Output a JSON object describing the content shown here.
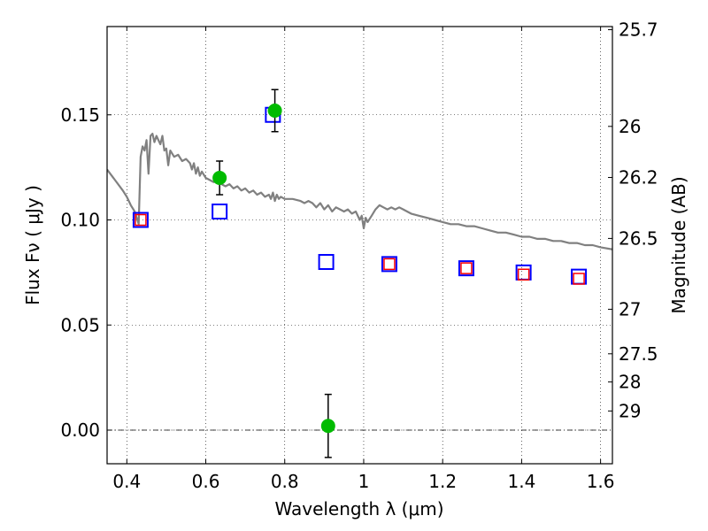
{
  "chart_data": {
    "type": "scatter",
    "xlabel": "Wavelength  λ (μm)",
    "ylabel": "Flux  Fν  ( μJy )",
    "y2label": "Magnitude (AB)",
    "xlim": [
      0.35,
      1.63
    ],
    "ylim": [
      -0.016,
      0.192
    ],
    "x_ticks": [
      0.4,
      0.6,
      0.8,
      1.0,
      1.2,
      1.4,
      1.6
    ],
    "x_tick_labels": [
      "0.4",
      "0.6",
      "0.8",
      "1",
      "1.2",
      "1.4",
      "1.6"
    ],
    "y_ticks": [
      0.0,
      0.05,
      0.1,
      0.15
    ],
    "y_tick_labels": [
      "0.00",
      "0.05",
      "0.10",
      "0.15"
    ],
    "y2_ticks": [
      {
        "label": "25.7",
        "flux": 0.1905
      },
      {
        "label": "26",
        "flux": 0.1445
      },
      {
        "label": "26.2",
        "flux": 0.1202
      },
      {
        "label": "26.5",
        "flux": 0.0912
      },
      {
        "label": "27",
        "flux": 0.0575
      },
      {
        "label": "27.5",
        "flux": 0.0363
      },
      {
        "label": "28",
        "flux": 0.0229
      },
      {
        "label": "29",
        "flux": 0.0091
      }
    ],
    "grid": true,
    "grid_style": "dotted",
    "zero_line": true,
    "colors": {
      "model_line": "#808080",
      "observed": "#00bb00",
      "model_box": "#0000ff",
      "small_box": "#ff0000",
      "errorbar": "#000000"
    },
    "series": [
      {
        "type": "errorbar",
        "marker": "circle",
        "x": [
          0.635,
          0.775,
          0.91
        ],
        "y": [
          0.12,
          0.152,
          0.002
        ],
        "yerr": [
          0.008,
          0.01,
          0.015
        ]
      },
      {
        "type": "scatter",
        "marker": "square-open",
        "x": [
          0.435,
          0.635,
          0.77,
          0.905,
          1.065,
          1.26,
          1.405,
          1.545
        ],
        "y": [
          0.1,
          0.104,
          0.15,
          0.08,
          0.079,
          0.077,
          0.075,
          0.073
        ]
      },
      {
        "type": "scatter",
        "marker": "square-open",
        "x": [
          0.435,
          1.065,
          1.26,
          1.405,
          1.545
        ],
        "y": [
          0.1,
          0.079,
          0.077,
          0.074,
          0.072
        ]
      },
      {
        "type": "line",
        "x": [
          0.35,
          0.37,
          0.39,
          0.4,
          0.41,
          0.42,
          0.425,
          0.43,
          0.435,
          0.44,
          0.445,
          0.45,
          0.455,
          0.46,
          0.465,
          0.47,
          0.475,
          0.48,
          0.485,
          0.49,
          0.495,
          0.5,
          0.505,
          0.51,
          0.52,
          0.53,
          0.54,
          0.55,
          0.56,
          0.565,
          0.57,
          0.575,
          0.58,
          0.585,
          0.59,
          0.6,
          0.61,
          0.62,
          0.63,
          0.64,
          0.65,
          0.66,
          0.67,
          0.68,
          0.69,
          0.7,
          0.71,
          0.72,
          0.73,
          0.74,
          0.75,
          0.76,
          0.765,
          0.77,
          0.775,
          0.78,
          0.785,
          0.79,
          0.8,
          0.82,
          0.84,
          0.85,
          0.86,
          0.87,
          0.88,
          0.89,
          0.9,
          0.91,
          0.92,
          0.93,
          0.94,
          0.95,
          0.96,
          0.97,
          0.98,
          0.99,
          0.995,
          1.0,
          1.005,
          1.01,
          1.02,
          1.03,
          1.04,
          1.05,
          1.06,
          1.07,
          1.08,
          1.09,
          1.1,
          1.12,
          1.14,
          1.16,
          1.18,
          1.2,
          1.22,
          1.24,
          1.26,
          1.28,
          1.3,
          1.32,
          1.34,
          1.36,
          1.38,
          1.4,
          1.42,
          1.44,
          1.46,
          1.48,
          1.5,
          1.52,
          1.54,
          1.56,
          1.58,
          1.6,
          1.63
        ],
        "y": [
          0.124,
          0.119,
          0.114,
          0.111,
          0.107,
          0.104,
          0.101,
          0.098,
          0.13,
          0.135,
          0.133,
          0.138,
          0.122,
          0.14,
          0.141,
          0.137,
          0.14,
          0.138,
          0.136,
          0.14,
          0.133,
          0.134,
          0.126,
          0.133,
          0.13,
          0.131,
          0.128,
          0.129,
          0.127,
          0.124,
          0.127,
          0.122,
          0.125,
          0.121,
          0.123,
          0.12,
          0.119,
          0.118,
          0.119,
          0.117,
          0.116,
          0.117,
          0.115,
          0.116,
          0.114,
          0.115,
          0.113,
          0.114,
          0.112,
          0.113,
          0.111,
          0.112,
          0.11,
          0.113,
          0.109,
          0.112,
          0.11,
          0.111,
          0.11,
          0.11,
          0.109,
          0.108,
          0.109,
          0.108,
          0.106,
          0.108,
          0.105,
          0.107,
          0.104,
          0.106,
          0.105,
          0.104,
          0.105,
          0.103,
          0.104,
          0.1,
          0.102,
          0.096,
          0.101,
          0.099,
          0.102,
          0.105,
          0.107,
          0.106,
          0.105,
          0.106,
          0.105,
          0.106,
          0.105,
          0.103,
          0.102,
          0.101,
          0.1,
          0.099,
          0.098,
          0.098,
          0.097,
          0.097,
          0.096,
          0.095,
          0.094,
          0.094,
          0.093,
          0.092,
          0.092,
          0.091,
          0.091,
          0.09,
          0.09,
          0.089,
          0.089,
          0.088,
          0.088,
          0.087,
          0.086
        ]
      }
    ]
  }
}
